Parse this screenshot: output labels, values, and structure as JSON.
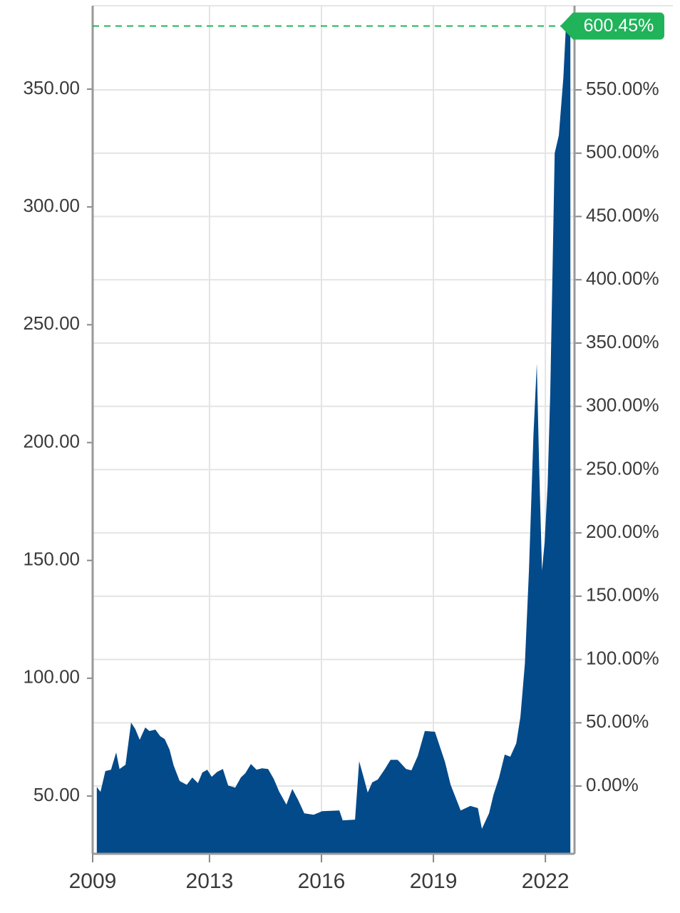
{
  "chart_data": {
    "type": "area",
    "color": "#034a8a",
    "x": [
      2009.98,
      2010.08,
      2010.21,
      2010.36,
      2010.5,
      2010.59,
      2010.75,
      2010.9,
      2011.01,
      2011.13,
      2011.28,
      2011.39,
      2011.55,
      2011.68,
      2011.8,
      2011.93,
      2012.04,
      2012.2,
      2012.39,
      2012.54,
      2012.69,
      2012.81,
      2012.94,
      2013.06,
      2013.21,
      2013.36,
      2013.5,
      2013.69,
      2013.84,
      2013.96,
      2014.11,
      2014.26,
      2014.41,
      2014.57,
      2014.72,
      2014.87,
      2015.06,
      2015.22,
      2015.37,
      2015.54,
      2015.79,
      2016.02,
      2016.48,
      2016.57,
      2016.9,
      2017.01,
      2017.13,
      2017.24,
      2017.36,
      2017.51,
      2017.7,
      2017.85,
      2018.04,
      2018.27,
      2018.41,
      2018.58,
      2018.77,
      2019.04,
      2019.31,
      2019.46,
      2019.73,
      2019.99,
      2020.19,
      2020.3,
      2020.49,
      2020.61,
      2020.76,
      2020.91,
      2021.06,
      2021.22,
      2021.33,
      2021.45,
      2021.56,
      2021.68,
      2021.77,
      2021.83,
      2021.91,
      2021.98,
      2022.06,
      2022.13,
      2022.25,
      2022.36,
      2022.48,
      2022.55,
      2022.67
    ],
    "values": [
      53.9,
      51.8,
      60.6,
      61.2,
      68.5,
      61.5,
      63.3,
      81.2,
      78.5,
      73.9,
      79.1,
      77.6,
      78.2,
      75.4,
      74.2,
      69.7,
      63.0,
      56.4,
      54.8,
      57.9,
      55.5,
      60.0,
      61.2,
      58.2,
      60.3,
      61.5,
      54.5,
      53.6,
      57.9,
      59.7,
      63.6,
      61.2,
      61.8,
      61.5,
      57.3,
      51.8,
      46.4,
      53.0,
      48.5,
      42.7,
      42.1,
      43.6,
      43.9,
      39.7,
      40.0,
      64.8,
      57.9,
      51.5,
      55.8,
      57.0,
      61.5,
      65.4,
      65.4,
      61.5,
      60.9,
      67.0,
      77.6,
      77.3,
      64.5,
      54.8,
      43.9,
      45.8,
      44.9,
      36.1,
      42.7,
      50.6,
      57.9,
      67.6,
      66.7,
      72.4,
      83.6,
      106.3,
      145.7,
      203.2,
      233.5,
      191.1,
      145.7,
      157.8,
      182.0,
      221.4,
      322.8,
      330.4,
      354.6,
      377.0,
      377.0
    ],
    "xlim": [
      2009.87,
      2022.78
    ],
    "xticks": [
      {
        "value": 2009.87,
        "label": "2009"
      },
      2013,
      2016,
      2019,
      2022
    ],
    "ylim": [
      25.5,
      385.4
    ],
    "yticks": [
      {
        "value": 50,
        "label": "50.00"
      },
      {
        "value": 100,
        "label": "100.00"
      },
      {
        "value": 150,
        "label": "150.00"
      },
      {
        "value": 200,
        "label": "200.00"
      },
      {
        "value": 250,
        "label": "250.00"
      },
      {
        "value": 300,
        "label": "300.00"
      },
      {
        "value": 350,
        "label": "350.00"
      }
    ],
    "y2lim": [
      -53.5,
      616.5
    ],
    "y2ticks": [
      {
        "value": 0,
        "label": "0.00%"
      },
      {
        "value": 50,
        "label": "50.00%"
      },
      {
        "value": 100,
        "label": "100.00%"
      },
      {
        "value": 150,
        "label": "150.00%"
      },
      {
        "value": 200,
        "label": "200.00%"
      },
      {
        "value": 250,
        "label": "250.00%"
      },
      {
        "value": 300,
        "label": "300.00%"
      },
      {
        "value": 350,
        "label": "350.00%"
      },
      {
        "value": 400,
        "label": "400.00%"
      },
      {
        "value": 450,
        "label": "450.00%"
      },
      {
        "value": 500,
        "label": "500.00%"
      },
      {
        "value": 550,
        "label": "550.00%"
      }
    ],
    "grid": true,
    "annotation": {
      "value": 600.45,
      "label": "600.45%",
      "color": "#20b35a"
    }
  }
}
